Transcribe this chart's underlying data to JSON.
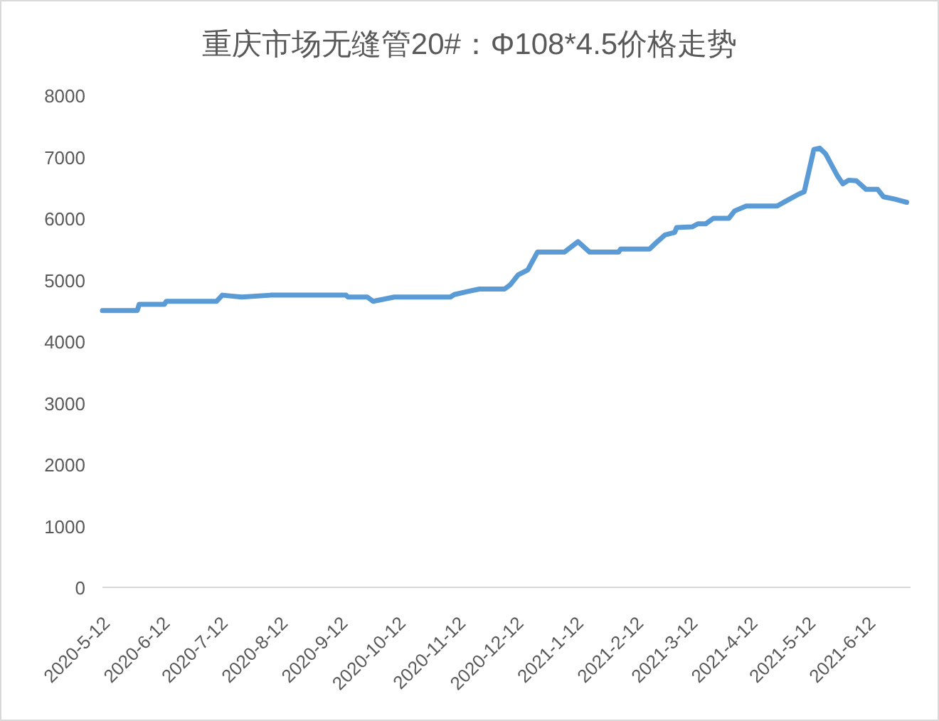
{
  "chart_data": {
    "type": "line",
    "title": "重庆市场无缝管20#：Φ108*4.5价格走势",
    "x": [
      "2020-05-12",
      "2020-05-30",
      "2020-05-31",
      "2020-06-13",
      "2020-06-14",
      "2020-07-10",
      "2020-07-13",
      "2020-07-23",
      "2020-08-07",
      "2020-09-15",
      "2020-09-16",
      "2020-09-26",
      "2020-09-29",
      "2020-10-10",
      "2020-11-08",
      "2020-11-10",
      "2020-11-17",
      "2020-11-23",
      "2020-12-06",
      "2020-12-09",
      "2020-12-13",
      "2020-12-18",
      "2020-12-23",
      "2021-01-06",
      "2021-01-08",
      "2021-01-13",
      "2021-01-19",
      "2021-02-03",
      "2021-02-04",
      "2021-02-19",
      "2021-02-23",
      "2021-02-27",
      "2021-03-04",
      "2021-03-05",
      "2021-03-13",
      "2021-03-16",
      "2021-03-20",
      "2021-03-24",
      "2021-04-01",
      "2021-04-04",
      "2021-04-10",
      "2021-04-26",
      "2021-04-30",
      "2021-05-07",
      "2021-05-10",
      "2021-05-15",
      "2021-05-18",
      "2021-05-21",
      "2021-05-27",
      "2021-05-30",
      "2021-06-02",
      "2021-06-06",
      "2021-06-11",
      "2021-06-17",
      "2021-06-20",
      "2021-06-26",
      "2021-07-02"
    ],
    "series": [
      {
        "color": "#5b9bd5",
        "values": [
          4500,
          4500,
          4600,
          4600,
          4650,
          4650,
          4750,
          4720,
          4750,
          4750,
          4720,
          4720,
          4650,
          4720,
          4720,
          4760,
          4810,
          4850,
          4850,
          4920,
          5080,
          5160,
          5450,
          5450,
          5500,
          5620,
          5450,
          5450,
          5500,
          5500,
          5620,
          5730,
          5770,
          5850,
          5860,
          5910,
          5910,
          6000,
          6000,
          6120,
          6200,
          6200,
          6270,
          6390,
          6430,
          7120,
          7140,
          7050,
          6700,
          6560,
          6620,
          6610,
          6470,
          6470,
          6350,
          6310,
          6260
        ]
      }
    ],
    "xlim": [
      "2020-05-12",
      "2021-07-04"
    ],
    "xticks": [
      {
        "value": "2020-05-12",
        "label": "2020-5-12"
      },
      {
        "value": "2020-06-12",
        "label": "2020-6-12"
      },
      {
        "value": "2020-07-12",
        "label": "2020-7-12"
      },
      {
        "value": "2020-08-12",
        "label": "2020-8-12"
      },
      {
        "value": "2020-09-12",
        "label": "2020-9-12"
      },
      {
        "value": "2020-10-12",
        "label": "2020-10-12"
      },
      {
        "value": "2020-11-12",
        "label": "2020-11-12"
      },
      {
        "value": "2020-12-12",
        "label": "2020-12-12"
      },
      {
        "value": "2021-01-12",
        "label": "2021-1-12"
      },
      {
        "value": "2021-02-12",
        "label": "2021-2-12"
      },
      {
        "value": "2021-03-12",
        "label": "2021-3-12"
      },
      {
        "value": "2021-04-12",
        "label": "2021-4-12"
      },
      {
        "value": "2021-05-12",
        "label": "2021-5-12"
      },
      {
        "value": "2021-06-12",
        "label": "2021-6-12"
      }
    ],
    "ylim": [
      0,
      8000
    ],
    "yticks": [
      0,
      1000,
      2000,
      3000,
      4000,
      5000,
      6000,
      7000,
      8000
    ],
    "grid": false,
    "marker": "none",
    "line_style": "solid"
  }
}
